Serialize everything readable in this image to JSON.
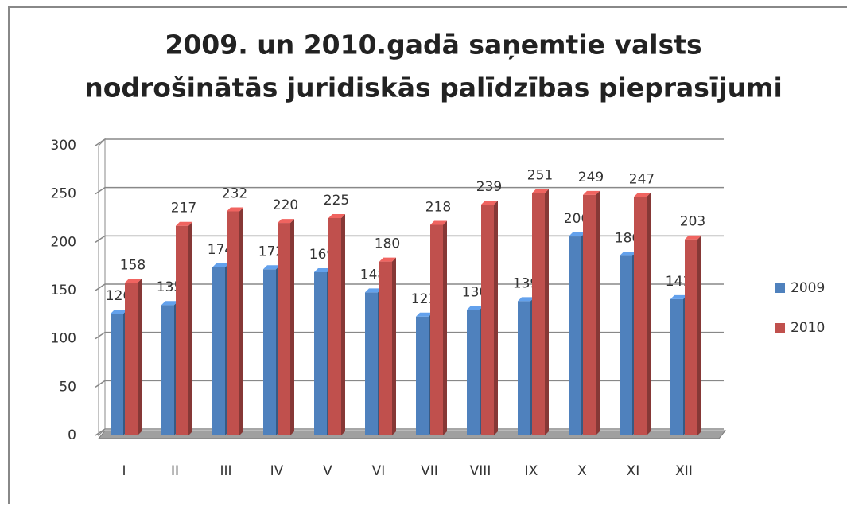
{
  "chart_data": {
    "type": "bar3d",
    "title": [
      "2009. un 2010.gadā saņemtie valsts",
      "nodrošinātās juridiskās palīdzības pieprasījumi"
    ],
    "categories": [
      "I",
      "II",
      "III",
      "IV",
      "V",
      "VI",
      "VII",
      "VIII",
      "IX",
      "X",
      "XI",
      "XII"
    ],
    "series": [
      {
        "name": "2009",
        "color": "#4f81bd",
        "values": [
          126,
          135,
          174,
          172,
          169,
          148,
          123,
          130,
          139,
          206,
          186,
          141
        ]
      },
      {
        "name": "2010",
        "color": "#c0504d",
        "values": [
          158,
          217,
          232,
          220,
          225,
          180,
          218,
          239,
          251,
          249,
          247,
          203
        ]
      }
    ],
    "ylim": [
      0,
      300
    ],
    "yticks": [
      0,
      50,
      100,
      150,
      200,
      250,
      300
    ],
    "grid": true,
    "legend": "right"
  }
}
